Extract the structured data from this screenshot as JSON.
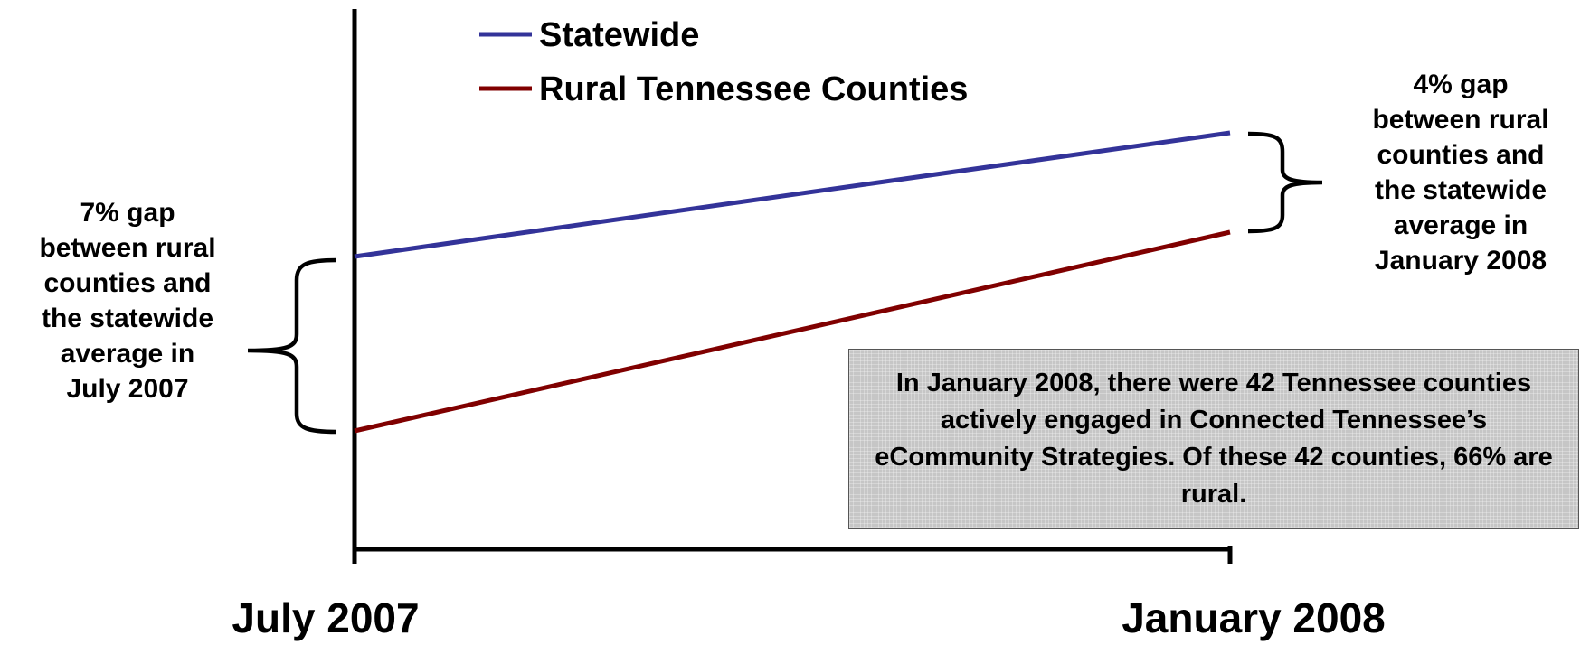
{
  "chart_data": {
    "type": "line",
    "categories": [
      "July 2007",
      "January 2008"
    ],
    "series": [
      {
        "name": "Statewide",
        "color": "#333399",
        "values": [
          null,
          null
        ]
      },
      {
        "name": "Rural Tennessee Counties",
        "color": "#800000",
        "values": [
          null,
          null
        ]
      }
    ],
    "gaps_percent": {
      "July 2007": 7,
      "January 2008": 4
    },
    "grid": false,
    "legend_placement": "top-left"
  },
  "annotations": {
    "left": "7% gap\nbetween rural\ncounties and\nthe statewide\naverage in\nJuly 2007",
    "right": "4% gap\nbetween rural\ncounties and\nthe statewide\naverage in\nJanuary 2008",
    "info_box": "In January 2008, there were 42 Tennessee counties actively engaged in Connected Tennessee’s eCommunity Strategies.  Of these 42 counties, 66% are rural."
  },
  "colors": {
    "statewide": "#333399",
    "rural": "#800000",
    "axis": "#000000",
    "box_fill": "#c6c6c6"
  }
}
